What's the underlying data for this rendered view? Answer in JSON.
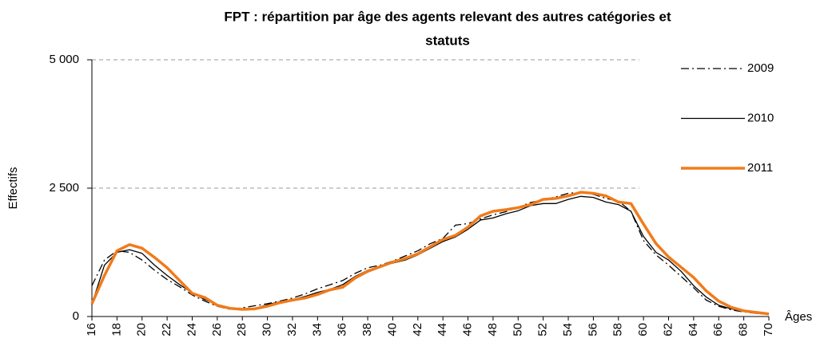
{
  "chart_data": {
    "type": "line",
    "title": [
      "FPT : répartition par âge des agents relevant des autres catégories et",
      "statuts"
    ],
    "y_label": "Effectifs",
    "x_label": "Âges",
    "x": [
      16,
      17,
      18,
      19,
      20,
      21,
      22,
      23,
      24,
      25,
      26,
      27,
      28,
      29,
      30,
      31,
      32,
      33,
      34,
      35,
      36,
      37,
      38,
      39,
      40,
      41,
      42,
      43,
      44,
      45,
      46,
      47,
      48,
      49,
      50,
      51,
      52,
      53,
      54,
      55,
      56,
      57,
      58,
      59,
      60,
      61,
      62,
      63,
      64,
      65,
      66,
      67,
      68,
      69,
      70
    ],
    "xlim": [
      16,
      70
    ],
    "xticks": [
      16,
      18,
      20,
      22,
      24,
      26,
      28,
      30,
      32,
      34,
      36,
      38,
      40,
      42,
      44,
      46,
      48,
      50,
      52,
      54,
      56,
      58,
      60,
      62,
      64,
      66,
      68,
      70
    ],
    "ylim": [
      0,
      5000
    ],
    "yticks": [
      0,
      {
        "value": 2500,
        "label": "2 500"
      },
      {
        "value": 5000,
        "label": "5 000"
      }
    ],
    "grid": true,
    "legend": "right",
    "series": [
      {
        "name": "2009",
        "color": "#000000",
        "linestyle": "dashdot",
        "values": [
          600,
          1100,
          1280,
          1250,
          1100,
          900,
          720,
          580,
          420,
          300,
          200,
          140,
          170,
          210,
          250,
          300,
          360,
          440,
          540,
          620,
          700,
          840,
          950,
          1000,
          1080,
          1180,
          1280,
          1420,
          1520,
          1780,
          1810,
          1900,
          1980,
          2040,
          2130,
          2220,
          2270,
          2330,
          2400,
          2420,
          2380,
          2300,
          2250,
          2050,
          1480,
          1200,
          1000,
          780,
          560,
          320,
          200,
          130,
          90,
          60,
          40
        ]
      },
      {
        "name": "2010",
        "color": "#000000",
        "linestyle": "solid",
        "values": [
          240,
          1000,
          1250,
          1300,
          1230,
          1000,
          800,
          620,
          460,
          330,
          230,
          150,
          140,
          160,
          230,
          290,
          330,
          390,
          470,
          530,
          620,
          780,
          900,
          980,
          1040,
          1100,
          1200,
          1330,
          1460,
          1550,
          1700,
          1880,
          1920,
          2000,
          2060,
          2160,
          2200,
          2200,
          2280,
          2340,
          2320,
          2230,
          2180,
          2050,
          1560,
          1250,
          1100,
          880,
          600,
          380,
          220,
          150,
          100,
          70,
          50
        ]
      },
      {
        "name": "2011",
        "color": "#f07b1b",
        "linestyle": "thick",
        "values": [
          250,
          800,
          1280,
          1400,
          1330,
          1150,
          950,
          700,
          450,
          370,
          220,
          160,
          140,
          150,
          200,
          270,
          320,
          360,
          430,
          520,
          570,
          750,
          880,
          970,
          1060,
          1130,
          1220,
          1360,
          1500,
          1580,
          1740,
          1960,
          2050,
          2080,
          2120,
          2180,
          2280,
          2300,
          2350,
          2420,
          2400,
          2350,
          2230,
          2200,
          1800,
          1420,
          1160,
          960,
          760,
          500,
          300,
          180,
          110,
          80,
          50
        ]
      }
    ]
  }
}
